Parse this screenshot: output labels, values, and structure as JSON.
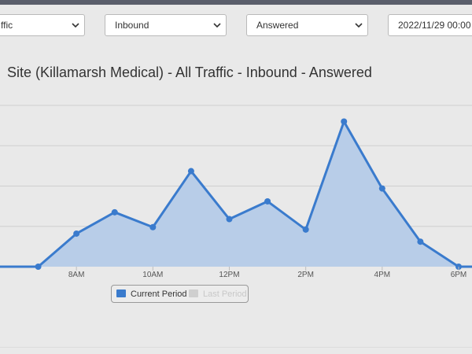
{
  "filters": {
    "traffic": "ffic",
    "direction": "Inbound",
    "status": "Answered",
    "date": "2022/11/29 00:00 -"
  },
  "colors": {
    "line": "#3a7bcd",
    "area": "#b8cde8",
    "grid": "#cfcfcf",
    "inactive_swatch": "#cfcfcf"
  },
  "legend": {
    "current": "Current Period",
    "last": "Last Period"
  },
  "chart_data": {
    "type": "area",
    "title": "Site (Killamarsh Medical) - All Traffic - Inbound - Answered",
    "xlabel": "",
    "ylabel": "",
    "x_ticks": [
      "8AM",
      "10AM",
      "12PM",
      "2PM",
      "4PM",
      "6PM"
    ],
    "x_tick_hours": [
      8,
      10,
      12,
      14,
      16,
      18
    ],
    "xlim": [
      6.0,
      18.35
    ],
    "ylim": [
      0,
      4
    ],
    "grid": true,
    "legend_position": "bottom",
    "series": [
      {
        "name": "Current Period",
        "x": [
          6.0,
          7,
          8,
          9,
          10,
          11,
          12,
          13,
          14,
          15,
          16,
          17,
          18,
          18.35
        ],
        "values": [
          0,
          0,
          0.82,
          1.35,
          0.98,
          2.37,
          1.18,
          1.62,
          0.92,
          3.6,
          1.94,
          0.62,
          0,
          0
        ]
      },
      {
        "name": "Last Period",
        "x": [],
        "values": []
      }
    ]
  }
}
